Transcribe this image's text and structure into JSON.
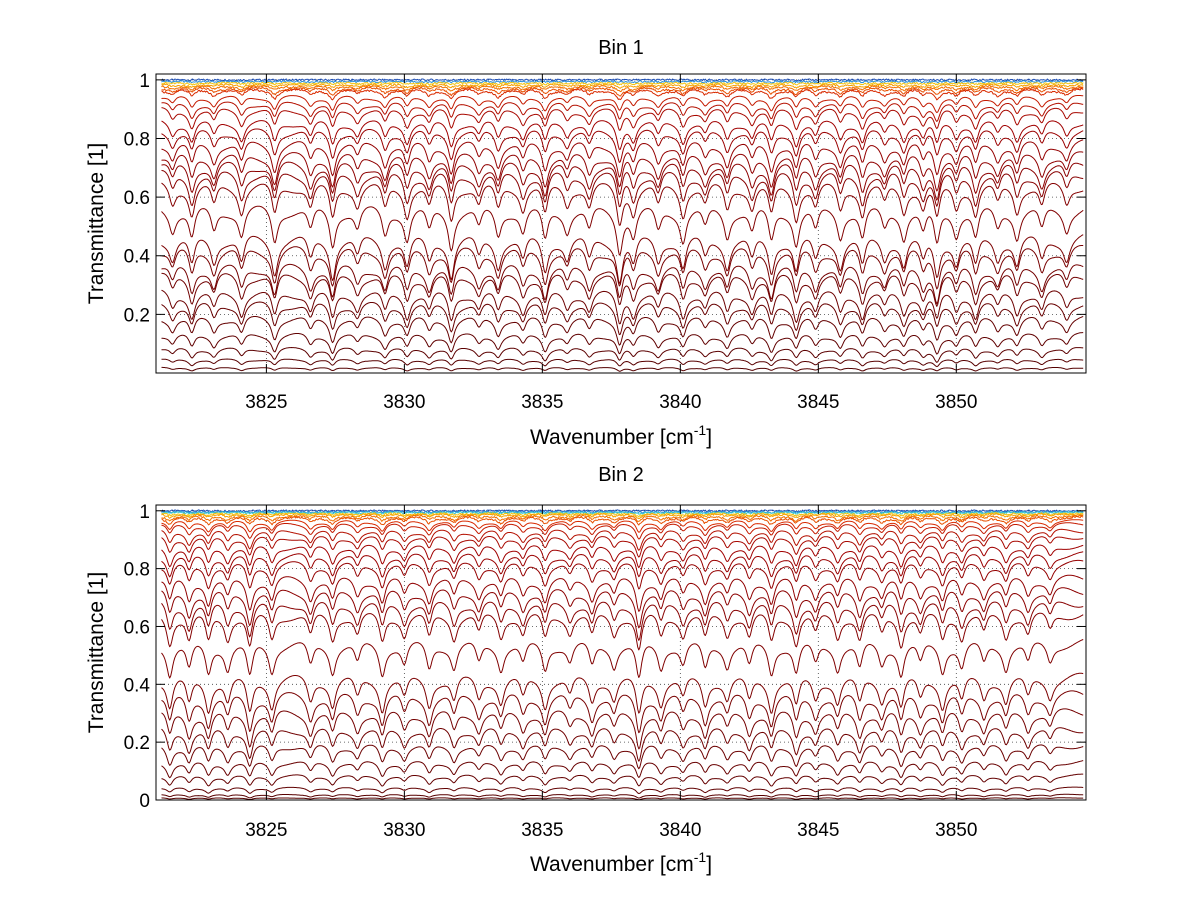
{
  "chart_data": [
    {
      "type": "line",
      "title": "Bin 1",
      "xlabel": "Wavenumber [cm",
      "xlabel_sup": "-1",
      "xlabel_tail": "]",
      "ylabel": "Transmittance [1]",
      "xlim": [
        3821,
        3854.7
      ],
      "ylim": [
        0,
        1.02
      ],
      "xticks": [
        "3825",
        "3830",
        "3835",
        "3840",
        "3845",
        "3850"
      ],
      "yticks": [
        "0.2",
        "0.4",
        "0.6",
        "0.8",
        "1"
      ],
      "grid": true,
      "x_range": [
        3821.2,
        3854.6
      ],
      "line_centers": [
        3821.6,
        3822.3,
        3823.1,
        3824.1,
        3825.3,
        3826.6,
        3827.4,
        3828.3,
        3829.3,
        3830.1,
        3830.9,
        3831.7,
        3832.7,
        3833.4,
        3834.3,
        3835.1,
        3835.9,
        3836.7,
        3837.8,
        3838.3,
        3839.2,
        3840.1,
        3840.9,
        3841.7,
        3842.6,
        3843.3,
        3844.2,
        3844.9,
        3845.8,
        3846.6,
        3847.4,
        3848.1,
        3848.8,
        3849.3,
        3850.0,
        3850.7,
        3851.5,
        3852.2,
        3853.1,
        3854.0
      ],
      "line_strengths": [
        0.6,
        0.9,
        0.7,
        0.8,
        1.0,
        0.7,
        1.1,
        0.6,
        0.8,
        0.9,
        0.7,
        1.1,
        0.6,
        0.8,
        0.7,
        1.0,
        0.6,
        0.7,
        1.2,
        0.8,
        0.7,
        0.9,
        0.6,
        0.8,
        0.7,
        1.0,
        1.0,
        0.7,
        0.8,
        0.9,
        0.6,
        0.8,
        0.7,
        1.1,
        0.7,
        0.9,
        0.6,
        0.8,
        0.7,
        0.6
      ],
      "series": [
        {
          "baseline": 1.0,
          "depth": 0.0,
          "color": "#1f4fb4"
        },
        {
          "baseline": 0.995,
          "depth": 0.002,
          "color": "#2a8fd8"
        },
        {
          "baseline": 0.99,
          "depth": 0.004,
          "color": "#f2c40f"
        },
        {
          "baseline": 0.985,
          "depth": 0.008,
          "color": "#f5a000"
        },
        {
          "baseline": 0.98,
          "depth": 0.012,
          "color": "#f07000"
        },
        {
          "baseline": 0.975,
          "depth": 0.018,
          "color": "#e85000"
        },
        {
          "baseline": 0.97,
          "depth": 0.025,
          "color": "#d82a00"
        },
        {
          "baseline": 0.95,
          "depth": 0.04,
          "color": "#c41a00"
        },
        {
          "baseline": 0.93,
          "depth": 0.05,
          "color": "#b41000"
        },
        {
          "baseline": 0.91,
          "depth": 0.06,
          "color": "#a80800"
        },
        {
          "baseline": 0.87,
          "depth": 0.07,
          "color": "#a00000"
        },
        {
          "baseline": 0.84,
          "depth": 0.075,
          "color": "#9a0000"
        },
        {
          "baseline": 0.8,
          "depth": 0.085,
          "color": "#940000"
        },
        {
          "baseline": 0.76,
          "depth": 0.09,
          "color": "#900000"
        },
        {
          "baseline": 0.73,
          "depth": 0.095,
          "color": "#8c0000"
        },
        {
          "baseline": 0.7,
          "depth": 0.1,
          "color": "#880000"
        },
        {
          "baseline": 0.66,
          "depth": 0.105,
          "color": "#840000"
        },
        {
          "baseline": 0.58,
          "depth": 0.11,
          "color": "#800000"
        },
        {
          "baseline": 0.48,
          "depth": 0.11,
          "color": "#7c0000"
        },
        {
          "baseline": 0.44,
          "depth": 0.1,
          "color": "#780000"
        },
        {
          "baseline": 0.38,
          "depth": 0.095,
          "color": "#740000"
        },
        {
          "baseline": 0.35,
          "depth": 0.09,
          "color": "#700000"
        },
        {
          "baseline": 0.29,
          "depth": 0.085,
          "color": "#6c0000"
        },
        {
          "baseline": 0.25,
          "depth": 0.075,
          "color": "#680000"
        },
        {
          "baseline": 0.2,
          "depth": 0.065,
          "color": "#640000"
        },
        {
          "baseline": 0.14,
          "depth": 0.05,
          "color": "#600000"
        },
        {
          "baseline": 0.09,
          "depth": 0.035,
          "color": "#5c0000"
        },
        {
          "baseline": 0.05,
          "depth": 0.02,
          "color": "#580000"
        },
        {
          "baseline": 0.02,
          "depth": 0.01,
          "color": "#540000"
        }
      ]
    },
    {
      "type": "line",
      "title": "Bin 2",
      "xlabel": "Wavenumber [cm",
      "xlabel_sup": "-1",
      "xlabel_tail": "]",
      "ylabel": "Transmittance [1]",
      "xlim": [
        3821,
        3854.7
      ],
      "ylim": [
        0,
        1.02
      ],
      "xticks": [
        "3825",
        "3830",
        "3835",
        "3840",
        "3845",
        "3850"
      ],
      "yticks": [
        "0",
        "0.2",
        "0.4",
        "0.6",
        "0.8",
        "1"
      ],
      "grid": true,
      "x_range": [
        3821.2,
        3854.6
      ],
      "line_centers": [
        3821.5,
        3822.2,
        3822.9,
        3823.6,
        3824.4,
        3825.2,
        3826.6,
        3827.4,
        3828.3,
        3829.2,
        3830.0,
        3830.9,
        3831.8,
        3832.7,
        3833.5,
        3834.3,
        3835.1,
        3836.0,
        3836.8,
        3837.6,
        3838.5,
        3839.3,
        3840.1,
        3840.9,
        3841.7,
        3842.5,
        3843.3,
        3844.2,
        3844.9,
        3845.7,
        3846.5,
        3847.3,
        3848.0,
        3848.7,
        3849.5,
        3850.2,
        3851.0,
        3851.8,
        3852.6,
        3853.4
      ],
      "line_strengths": [
        1.0,
        0.9,
        1.0,
        0.8,
        1.2,
        0.9,
        0.8,
        0.9,
        0.7,
        1.0,
        0.7,
        0.9,
        0.8,
        0.7,
        0.8,
        0.7,
        0.9,
        0.6,
        0.8,
        0.7,
        1.3,
        0.8,
        0.7,
        0.9,
        0.7,
        0.8,
        1.0,
        1.0,
        0.7,
        0.8,
        0.9,
        0.7,
        1.0,
        0.7,
        0.9,
        0.8,
        0.7,
        0.8,
        0.7,
        0.6
      ],
      "series": [
        {
          "baseline": 1.0,
          "depth": 0.0,
          "color": "#1f4fb4"
        },
        {
          "baseline": 0.997,
          "depth": 0.002,
          "color": "#2a8fd8"
        },
        {
          "baseline": 0.995,
          "depth": 0.003,
          "color": "#3cc8d0"
        },
        {
          "baseline": 0.992,
          "depth": 0.006,
          "color": "#f2c40f"
        },
        {
          "baseline": 0.99,
          "depth": 0.01,
          "color": "#f5a000"
        },
        {
          "baseline": 0.985,
          "depth": 0.015,
          "color": "#f07000"
        },
        {
          "baseline": 0.98,
          "depth": 0.02,
          "color": "#e85000"
        },
        {
          "baseline": 0.97,
          "depth": 0.03,
          "color": "#d82a00"
        },
        {
          "baseline": 0.96,
          "depth": 0.035,
          "color": "#c41a00"
        },
        {
          "baseline": 0.94,
          "depth": 0.045,
          "color": "#b41000"
        },
        {
          "baseline": 0.92,
          "depth": 0.05,
          "color": "#a80800"
        },
        {
          "baseline": 0.89,
          "depth": 0.06,
          "color": "#a00000"
        },
        {
          "baseline": 0.86,
          "depth": 0.065,
          "color": "#9a0000"
        },
        {
          "baseline": 0.83,
          "depth": 0.07,
          "color": "#940000"
        },
        {
          "baseline": 0.78,
          "depth": 0.08,
          "color": "#900000"
        },
        {
          "baseline": 0.74,
          "depth": 0.085,
          "color": "#8c0000"
        },
        {
          "baseline": 0.7,
          "depth": 0.09,
          "color": "#880000"
        },
        {
          "baseline": 0.66,
          "depth": 0.095,
          "color": "#840000"
        },
        {
          "baseline": 0.56,
          "depth": 0.1,
          "color": "#800000"
        },
        {
          "baseline": 0.44,
          "depth": 0.1,
          "color": "#7c0000"
        },
        {
          "baseline": 0.38,
          "depth": 0.095,
          "color": "#780000"
        },
        {
          "baseline": 0.32,
          "depth": 0.085,
          "color": "#740000"
        },
        {
          "baseline": 0.26,
          "depth": 0.075,
          "color": "#700000"
        },
        {
          "baseline": 0.2,
          "depth": 0.06,
          "color": "#6c0000"
        },
        {
          "baseline": 0.14,
          "depth": 0.045,
          "color": "#680000"
        },
        {
          "baseline": 0.09,
          "depth": 0.03,
          "color": "#640000"
        },
        {
          "baseline": 0.045,
          "depth": 0.015,
          "color": "#600000"
        },
        {
          "baseline": 0.02,
          "depth": 0.008,
          "color": "#580000"
        },
        {
          "baseline": 0.008,
          "depth": 0.004,
          "color": "#540000"
        }
      ]
    }
  ]
}
